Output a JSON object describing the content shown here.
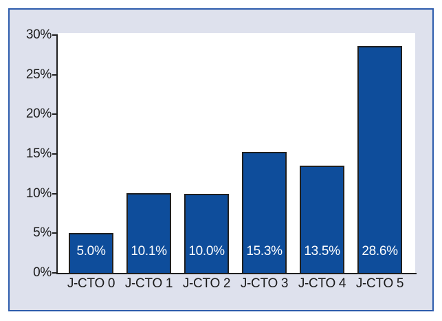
{
  "chart_data": {
    "type": "bar",
    "title": "",
    "xlabel": "",
    "ylabel": "",
    "categories": [
      "J-CTO 0",
      "J-CTO 1",
      "J-CTO 2",
      "J-CTO 3",
      "J-CTO 4",
      "J-CTO 5"
    ],
    "values": [
      5.0,
      10.1,
      10.0,
      15.3,
      13.5,
      28.6
    ],
    "value_labels": [
      "5.0%",
      "10.1%",
      "10.0%",
      "15.3%",
      "13.5%",
      "28.6%"
    ],
    "y_ticks": [
      "0%",
      "5%",
      "10%",
      "15%",
      "20%",
      "25%",
      "30%"
    ],
    "y_tick_values": [
      0,
      5,
      10,
      15,
      20,
      25,
      30
    ],
    "ylim": [
      0,
      30
    ],
    "grid": false,
    "legend": "none",
    "value_label_position": "inside-bottom"
  },
  "colors": {
    "bar_fill": "#0e4d9b",
    "bar_border": "#1f1f1f",
    "bar_value_text": "#ffffff",
    "axis": "#1f1f1f",
    "tick_text": "#1a1a1a",
    "frame_border": "#2d5cac",
    "frame_background": "#dee1ed",
    "plot_background": "#ffffff",
    "page_background": "#ffffff"
  }
}
